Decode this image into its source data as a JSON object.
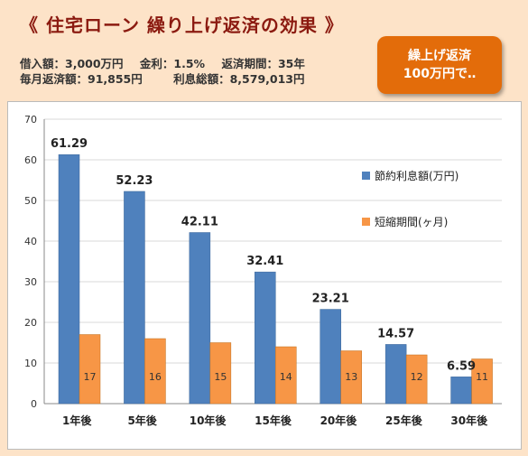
{
  "header": {
    "title": "《 住宅ローン 繰り上げ返済の効果 》",
    "info_line1": [
      "借入額：3,000万円",
      "金利：1.5%",
      "返済期間：35年"
    ],
    "info_line2": [
      "毎月返済額：91,855円",
      "利息総額：8,579,013円"
    ]
  },
  "callout": {
    "line1": "繰上げ返済",
    "line2": "100万円で‥"
  },
  "colors": {
    "series1": "#4f81bd",
    "series2": "#f79646",
    "title": "#8b1a10",
    "callout": "#e36c0a"
  },
  "chart_data": {
    "type": "bar",
    "categories": [
      "1年後",
      "5年後",
      "10年後",
      "15年後",
      "20年後",
      "25年後",
      "30年後"
    ],
    "series": [
      {
        "name": "節約利息額(万円)",
        "values": [
          61.29,
          52.23,
          42.11,
          32.41,
          23.21,
          14.57,
          6.59
        ]
      },
      {
        "name": "短縮期間(ヶ月)",
        "values": [
          17,
          16,
          15,
          14,
          13,
          12,
          11
        ]
      }
    ],
    "ylim": [
      0,
      70
    ],
    "yticks": [
      0,
      10,
      20,
      30,
      40,
      50,
      60,
      70
    ],
    "grid": true,
    "legend": "right"
  }
}
